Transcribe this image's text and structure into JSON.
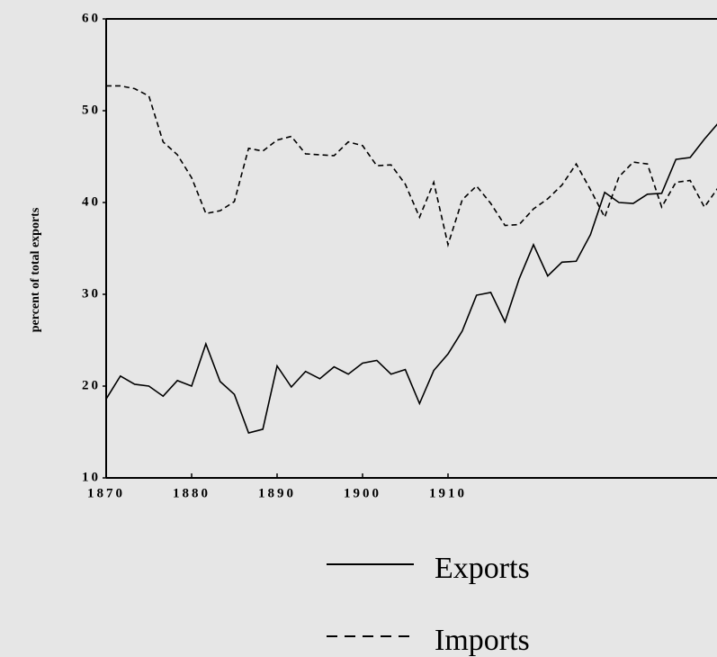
{
  "chart_data": {
    "type": "line",
    "ylabel": "percent of total exports",
    "categories": [
      "1870",
      null,
      null,
      null,
      null,
      null,
      "1880",
      null,
      null,
      null,
      null,
      null,
      "1890",
      null,
      null,
      null,
      null,
      null,
      "1900",
      null,
      null,
      null,
      null,
      null,
      "1910",
      null,
      null,
      null,
      null,
      null,
      null,
      null,
      null,
      null,
      null,
      null,
      null,
      null,
      null,
      null,
      null,
      null,
      null,
      null
    ],
    "series": [
      {
        "name": "Exports",
        "color": "#000000",
        "dash": "solid",
        "values": [
          18.6,
          21.1,
          20.2,
          20.0,
          18.9,
          20.6,
          20.0,
          24.6,
          20.5,
          19.1,
          14.9,
          15.3,
          22.2,
          19.9,
          21.6,
          20.8,
          22.1,
          21.3,
          22.5,
          22.8,
          21.3,
          21.8,
          18.1,
          21.7,
          23.5,
          26.0,
          29.9,
          30.2,
          27.0,
          31.7,
          35.4,
          32.0,
          33.5,
          33.6,
          36.5,
          41.1,
          40.0,
          39.9,
          40.9,
          41.0,
          44.7,
          44.9,
          46.9,
          48.7
        ]
      },
      {
        "name": "Imports",
        "color": "#000000",
        "dash": "dashed",
        "values": [
          52.7,
          52.7,
          52.4,
          51.6,
          46.6,
          45.2,
          42.7,
          38.8,
          39.1,
          40.1,
          45.9,
          45.6,
          46.8,
          47.2,
          45.3,
          45.2,
          45.1,
          46.6,
          46.2,
          44.0,
          44.1,
          42.0,
          38.4,
          42.2,
          35.4,
          40.3,
          41.8,
          39.9,
          37.5,
          37.6,
          39.3,
          40.4,
          41.9,
          44.2,
          41.4,
          38.4,
          42.8,
          44.4,
          44.2,
          39.5,
          42.2,
          42.4,
          39.5,
          41.7
        ]
      }
    ],
    "ylim": [
      10,
      60
    ],
    "yticks": [
      10,
      20,
      30,
      40,
      50,
      60
    ],
    "grid": false
  }
}
